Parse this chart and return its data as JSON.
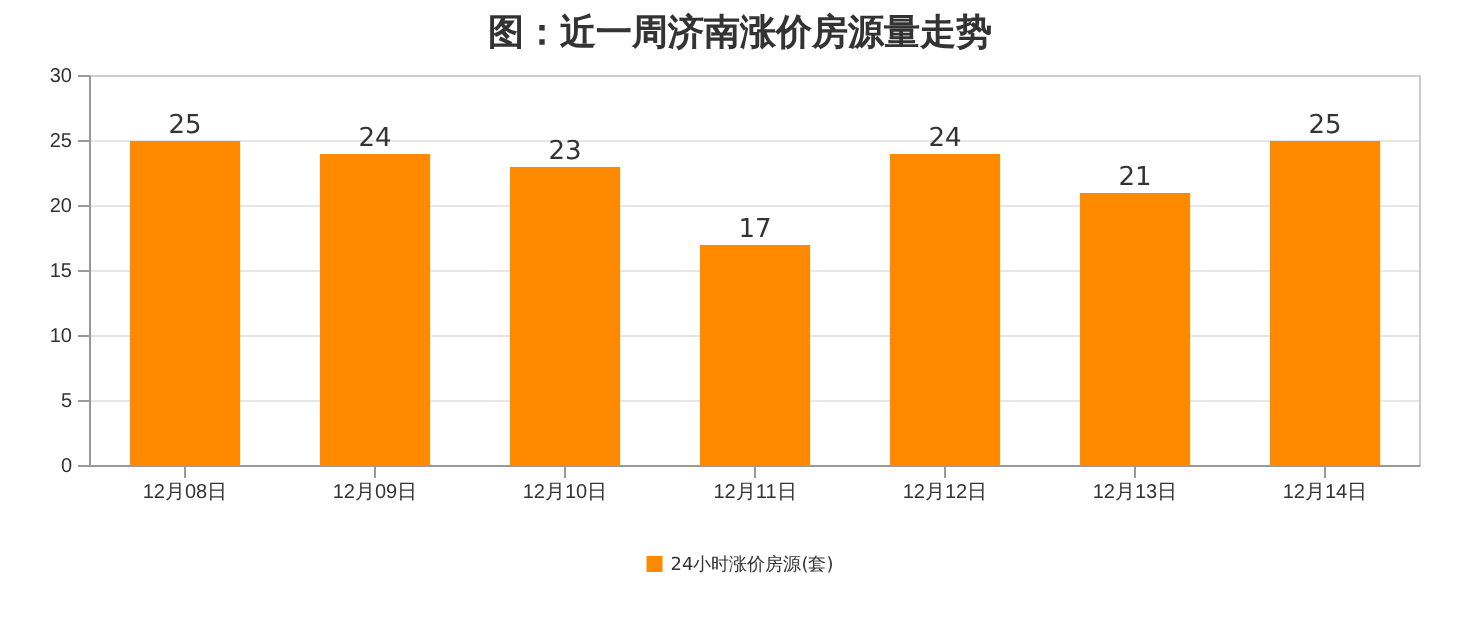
{
  "chart_data": {
    "type": "bar",
    "title": "图：近一周济南涨价房源量走势",
    "categories": [
      "12月08日",
      "12月09日",
      "12月10日",
      "12月11日",
      "12月12日",
      "12月13日",
      "12月14日"
    ],
    "series": [
      {
        "name": "24小时涨价房源(套)",
        "color": "#ff8a00",
        "values": [
          25,
          24,
          23,
          17,
          24,
          21,
          25
        ]
      }
    ],
    "ylim": [
      0,
      30
    ],
    "yticks": [
      0,
      5,
      10,
      15,
      20,
      25,
      30
    ],
    "grid": "y",
    "legend": "bottom",
    "data_labels": true
  }
}
